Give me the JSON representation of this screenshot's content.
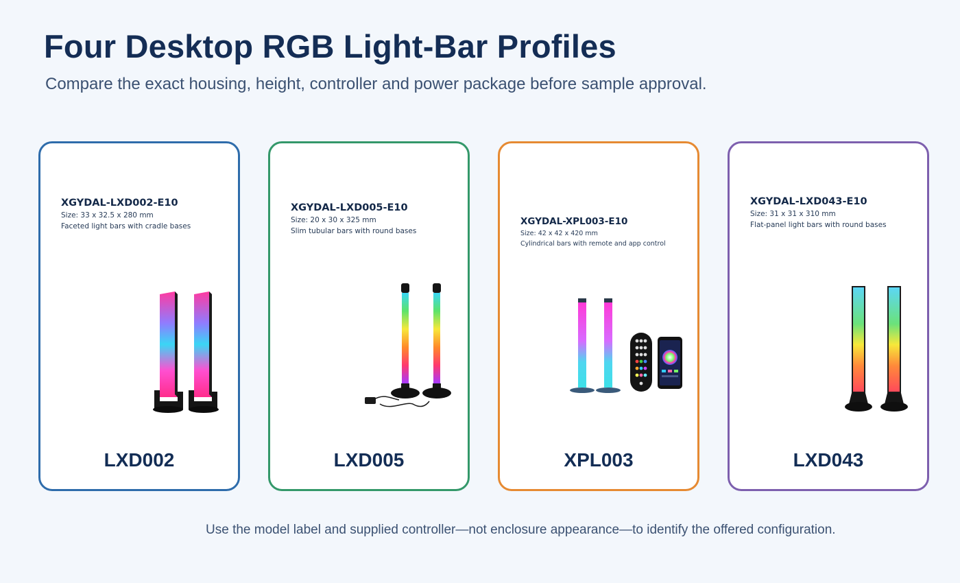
{
  "header": {
    "title": "Four Desktop RGB Light-Bar Profiles",
    "subtitle": "Compare the exact housing, height, controller and power package before sample approval."
  },
  "cards": [
    {
      "sku": "XGYDAL-LXD002-E10",
      "size": "Size: 33 x 32.5 x 280 mm",
      "description": "Faceted light bars with cradle bases",
      "model": "LXD002",
      "border_color": "#2e6cab"
    },
    {
      "sku": "XGYDAL-LXD005-E10",
      "size": "Size: 20 x 30 x 325 mm",
      "description": "Slim tubular bars with round bases",
      "model": "LXD005",
      "border_color": "#34986a"
    },
    {
      "sku": "XGYDAL-XPL003-E10",
      "size": "Size: 42 x 42 x 420 mm",
      "description": "Cylindrical bars with remote and app control",
      "model": "XPL003",
      "border_color": "#e68a32"
    },
    {
      "sku": "XGYDAL-LXD043-E10",
      "size": "Size: 31 x 31 x 310 mm",
      "description": "Flat-panel light bars with round bases",
      "model": "LXD043",
      "border_color": "#7d5fae"
    }
  ],
  "footer": {
    "note": "Use the model label and supplied controller—not enclosure appearance—to identify the offered configuration."
  }
}
